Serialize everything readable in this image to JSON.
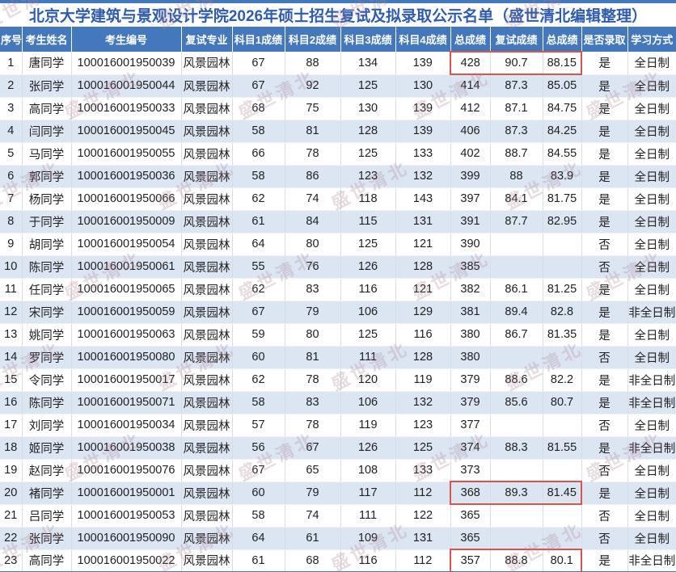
{
  "title": "北京大学建筑与景观设计学院2026年硕士招生复试及拟录取公示名单（盛世清北编辑整理）",
  "watermark_text": "盛世清北",
  "colors": {
    "header_bg": "#4478BC",
    "row_alt_bg": "#DCE6F3",
    "title_color": "#2F5CAD",
    "highlight_border": "#D9534F"
  },
  "table": {
    "columns": [
      "序号",
      "考生姓名",
      "考生编号",
      "复试专业",
      "科目1成绩",
      "科目2成绩",
      "科目3成绩",
      "科目4成绩",
      "总成绩",
      "复试成绩",
      "总成绩",
      "是否录取",
      "学习方式"
    ],
    "rows": [
      [
        "1",
        "唐同学",
        "100016001950039",
        "风景园林",
        "67",
        "88",
        "134",
        "139",
        "428",
        "90.7",
        "88.15",
        "是",
        "全日制"
      ],
      [
        "2",
        "张同学",
        "100016001950044",
        "风景园林",
        "67",
        "92",
        "125",
        "130",
        "414",
        "87.3",
        "85.05",
        "是",
        "全日制"
      ],
      [
        "3",
        "高同学",
        "100016001950033",
        "风景园林",
        "68",
        "75",
        "130",
        "139",
        "412",
        "87.1",
        "84.75",
        "是",
        "全日制"
      ],
      [
        "4",
        "闫同学",
        "100016001950045",
        "风景园林",
        "58",
        "81",
        "128",
        "139",
        "406",
        "87.3",
        "84.25",
        "是",
        "全日制"
      ],
      [
        "5",
        "马同学",
        "100016001950055",
        "风景园林",
        "66",
        "78",
        "125",
        "133",
        "402",
        "88.7",
        "84.55",
        "是",
        "全日制"
      ],
      [
        "6",
        "郭同学",
        "100016001950036",
        "风景园林",
        "58",
        "86",
        "123",
        "132",
        "399",
        "88",
        "83.9",
        "是",
        "全日制"
      ],
      [
        "7",
        "杨同学",
        "100016001950066",
        "风景园林",
        "62",
        "74",
        "118",
        "143",
        "397",
        "84.1",
        "81.75",
        "是",
        "全日制"
      ],
      [
        "8",
        "于同学",
        "100016001950009",
        "风景园林",
        "61",
        "84",
        "115",
        "131",
        "391",
        "87.7",
        "82.95",
        "是",
        "全日制"
      ],
      [
        "9",
        "胡同学",
        "100016001950054",
        "风景园林",
        "64",
        "80",
        "125",
        "121",
        "390",
        "",
        "",
        "否",
        "全日制"
      ],
      [
        "10",
        "陈同学",
        "100016001950061",
        "风景园林",
        "55",
        "76",
        "126",
        "128",
        "385",
        "",
        "",
        "否",
        "全日制"
      ],
      [
        "11",
        "任同学",
        "100016001950065",
        "风景园林",
        "62",
        "83",
        "116",
        "121",
        "382",
        "86.1",
        "81.25",
        "是",
        "全日制"
      ],
      [
        "12",
        "宋同学",
        "100016001950059",
        "风景园林",
        "67",
        "79",
        "106",
        "129",
        "381",
        "89.4",
        "82.8",
        "是",
        "非全日制"
      ],
      [
        "13",
        "姚同学",
        "100016001950063",
        "风景园林",
        "59",
        "80",
        "125",
        "116",
        "380",
        "86.7",
        "81.35",
        "是",
        "全日制"
      ],
      [
        "14",
        "罗同学",
        "100016001950080",
        "风景园林",
        "60",
        "81",
        "111",
        "128",
        "380",
        "",
        "",
        "否",
        "全日制"
      ],
      [
        "15",
        "令同学",
        "100016001950017",
        "风景园林",
        "62",
        "78",
        "120",
        "119",
        "379",
        "88.6",
        "82.2",
        "是",
        "非全日制"
      ],
      [
        "16",
        "陈同学",
        "100016001950071",
        "风景园林",
        "58",
        "83",
        "106",
        "132",
        "379",
        "85.6",
        "80.7",
        "是",
        "非全日制"
      ],
      [
        "17",
        "刘同学",
        "100016001950034",
        "风景园林",
        "57",
        "78",
        "119",
        "123",
        "377",
        "",
        "",
        "否",
        "全日制"
      ],
      [
        "18",
        "姬同学",
        "100016001950038",
        "风景园林",
        "56",
        "67",
        "126",
        "125",
        "374",
        "88.3",
        "81.55",
        "是",
        "非全日制"
      ],
      [
        "19",
        "赵同学",
        "100016001950076",
        "风景园林",
        "67",
        "65",
        "108",
        "133",
        "373",
        "",
        "",
        "否",
        "全日制"
      ],
      [
        "20",
        "褚同学",
        "100016001950001",
        "风景园林",
        "60",
        "79",
        "117",
        "112",
        "368",
        "89.3",
        "81.45",
        "是",
        "全日制"
      ],
      [
        "21",
        "吕同学",
        "100016001950053",
        "风景园林",
        "58",
        "74",
        "111",
        "122",
        "365",
        "",
        "",
        "否",
        "全日制"
      ],
      [
        "22",
        "张同学",
        "100016001950090",
        "风景园林",
        "64",
        "61",
        "109",
        "131",
        "365",
        "",
        "",
        "否",
        "全日制"
      ],
      [
        "23",
        "高同学",
        "100016001950022",
        "风景园林",
        "61",
        "68",
        "116",
        "112",
        "357",
        "88.8",
        "80.1",
        "是",
        "非全日制"
      ]
    ],
    "highlight": {
      "rows": [
        1,
        20,
        23
      ],
      "col_start": 8,
      "col_end": 10
    }
  }
}
